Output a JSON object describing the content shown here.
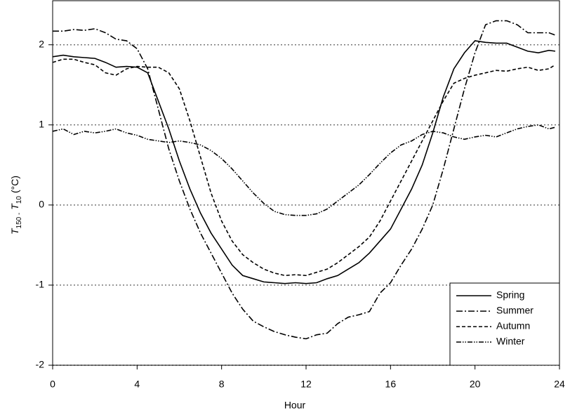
{
  "chart_data": {
    "type": "line",
    "xlabel": "Hour",
    "ylabel": [
      "T",
      "150 -",
      "T",
      "10",
      "(°C)"
    ],
    "x": [
      0,
      0.5,
      1,
      1.5,
      2,
      2.5,
      3,
      3.5,
      4,
      4.5,
      5,
      5.5,
      6,
      6.5,
      7,
      7.5,
      8,
      8.5,
      9,
      9.5,
      10,
      10.5,
      11,
      11.5,
      12,
      12.5,
      13,
      13.5,
      14,
      14.5,
      15,
      15.5,
      16,
      16.5,
      17,
      17.5,
      18,
      18.5,
      19,
      19.5,
      20,
      20.5,
      21,
      21.5,
      22,
      22.5,
      23,
      23.5,
      23.8
    ],
    "series": [
      {
        "name": "Spring",
        "color": "#000000",
        "dash": "none",
        "values": [
          1.85,
          1.87,
          1.85,
          1.84,
          1.83,
          1.78,
          1.72,
          1.73,
          1.72,
          1.65,
          1.3,
          0.95,
          0.55,
          0.2,
          -0.1,
          -0.35,
          -0.55,
          -0.75,
          -0.88,
          -0.92,
          -0.96,
          -0.97,
          -0.98,
          -0.97,
          -0.98,
          -0.97,
          -0.92,
          -0.88,
          -0.8,
          -0.72,
          -0.6,
          -0.45,
          -0.3,
          -0.05,
          0.2,
          0.5,
          0.9,
          1.35,
          1.7,
          1.9,
          2.05,
          2.03,
          2.02,
          2.02,
          1.97,
          1.92,
          1.9,
          1.93,
          1.92
        ]
      },
      {
        "name": "Summer",
        "color": "#000000",
        "dash": "9 3 2 3",
        "values": [
          2.17,
          2.17,
          2.19,
          2.18,
          2.2,
          2.15,
          2.07,
          2.05,
          1.95,
          1.7,
          1.2,
          0.7,
          0.3,
          -0.05,
          -0.35,
          -0.6,
          -0.85,
          -1.1,
          -1.3,
          -1.45,
          -1.52,
          -1.58,
          -1.62,
          -1.65,
          -1.67,
          -1.62,
          -1.6,
          -1.48,
          -1.4,
          -1.37,
          -1.33,
          -1.1,
          -0.97,
          -0.75,
          -0.55,
          -0.3,
          0.0,
          0.45,
          0.95,
          1.45,
          1.9,
          2.25,
          2.3,
          2.3,
          2.25,
          2.15,
          2.15,
          2.15,
          2.12
        ]
      },
      {
        "name": "Autumn",
        "color": "#000000",
        "dash": "5 3",
        "values": [
          1.78,
          1.82,
          1.82,
          1.78,
          1.75,
          1.65,
          1.62,
          1.7,
          1.73,
          1.72,
          1.72,
          1.65,
          1.45,
          1.05,
          0.6,
          0.15,
          -0.2,
          -0.45,
          -0.62,
          -0.72,
          -0.8,
          -0.85,
          -0.88,
          -0.87,
          -0.88,
          -0.84,
          -0.8,
          -0.72,
          -0.62,
          -0.52,
          -0.4,
          -0.2,
          0.05,
          0.3,
          0.55,
          0.8,
          1.05,
          1.3,
          1.52,
          1.58,
          1.62,
          1.65,
          1.68,
          1.67,
          1.7,
          1.72,
          1.68,
          1.7,
          1.75
        ]
      },
      {
        "name": "Winter",
        "color": "#000000",
        "dash": "7 2 1.5 2 1.5 2",
        "values": [
          0.92,
          0.95,
          0.88,
          0.92,
          0.9,
          0.92,
          0.95,
          0.9,
          0.87,
          0.82,
          0.8,
          0.78,
          0.8,
          0.78,
          0.75,
          0.68,
          0.58,
          0.45,
          0.3,
          0.15,
          0.02,
          -0.08,
          -0.12,
          -0.13,
          -0.13,
          -0.11,
          -0.05,
          0.05,
          0.15,
          0.25,
          0.38,
          0.52,
          0.65,
          0.75,
          0.8,
          0.88,
          0.92,
          0.9,
          0.85,
          0.82,
          0.85,
          0.87,
          0.85,
          0.9,
          0.95,
          0.98,
          1.0,
          0.95,
          0.97
        ]
      }
    ],
    "xlim": [
      0,
      24
    ],
    "xticks": [
      0,
      4,
      8,
      12,
      16,
      20,
      24
    ],
    "ylim": [
      -2,
      2.55
    ],
    "yticks": [
      -2,
      -1,
      0,
      1,
      2
    ],
    "grid": true,
    "legend": "lower-right"
  }
}
